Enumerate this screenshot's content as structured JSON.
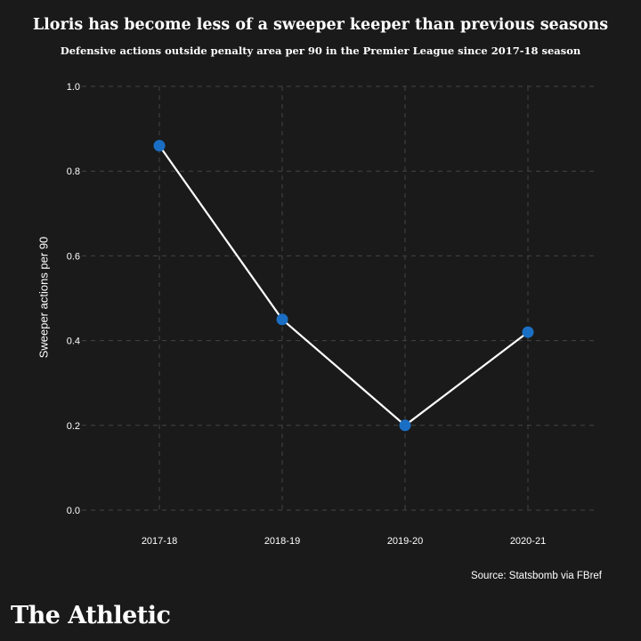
{
  "title": "Lloris has become less of a sweeper keeper than previous seasons",
  "subtitle": "Defensive actions outside penalty area per 90 in the Premier League since 2017-18 season",
  "source": "Source: Statsbomb via FBref",
  "brand": "The Athletic",
  "colors": {
    "background": "#1a1a1a",
    "line": "#ffffff",
    "marker": "#1a6fc4",
    "grid": "#444444",
    "text": "#ffffff"
  },
  "chart_data": {
    "type": "line",
    "categories": [
      "2017-18",
      "2018-19",
      "2019-20",
      "2020-21"
    ],
    "values": [
      0.86,
      0.45,
      0.2,
      0.42
    ],
    "ylabel": "Sweeper actions per 90",
    "xlabel": "",
    "ylim": [
      0.0,
      1.0
    ],
    "yticks": [
      "0.0",
      "0.2",
      "0.4",
      "0.6",
      "0.8",
      "1.0"
    ],
    "grid": true
  }
}
